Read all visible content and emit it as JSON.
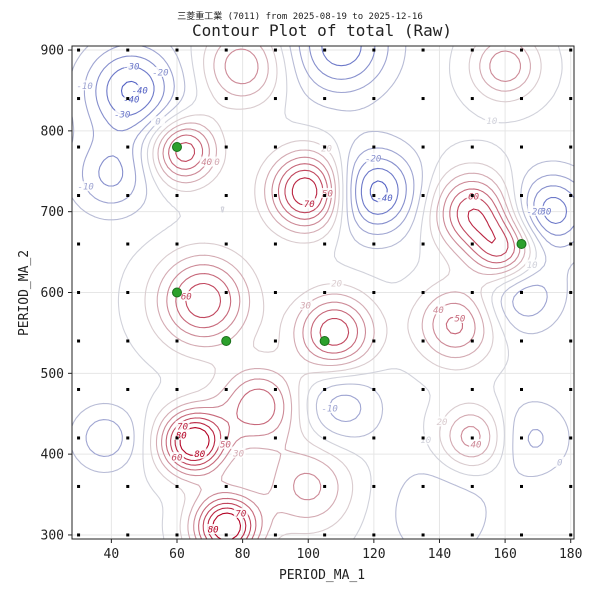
{
  "chart_data": {
    "type": "contour",
    "title": "Contour Plot of total (Raw)",
    "subtitle": "三菱重工業 (7011) from 2025-08-19 to 2025-12-16",
    "xlabel": "PERIOD_MA_1",
    "ylabel": "PERIOD_MA_2",
    "xlim": [
      28,
      181
    ],
    "ylim": [
      295,
      905
    ],
    "xticks": [
      40,
      60,
      80,
      100,
      120,
      140,
      160,
      180
    ],
    "yticks": [
      300,
      400,
      500,
      600,
      700,
      800,
      900
    ],
    "grid": true,
    "colormap": "coolwarm",
    "colors": {
      "low": "#3b4cc0",
      "mid": "#dddddd",
      "high": "#b40426",
      "marker": "#2ca02c",
      "sample": "#000000"
    },
    "value_range": [
      -50,
      80
    ],
    "features": [
      {
        "x": 46,
        "y": 850,
        "value": -50,
        "spread": 14
      },
      {
        "x": 40,
        "y": 745,
        "value": -30,
        "spread": 12
      },
      {
        "x": 120,
        "y": 725,
        "value": -55,
        "spread": 13
      },
      {
        "x": 110,
        "y": 905,
        "value": -45,
        "spread": 15
      },
      {
        "x": 174,
        "y": 700,
        "value": -45,
        "spread": 12
      },
      {
        "x": 165,
        "y": 600,
        "value": -30,
        "spread": 12
      },
      {
        "x": 110,
        "y": 460,
        "value": -25,
        "spread": 12
      },
      {
        "x": 38,
        "y": 420,
        "value": -25,
        "spread": 10
      },
      {
        "x": 168,
        "y": 420,
        "value": -20,
        "spread": 12
      },
      {
        "x": 140,
        "y": 330,
        "value": -15,
        "spread": 18
      },
      {
        "x": 100,
        "y": 725,
        "value": 75,
        "spread": 12
      },
      {
        "x": 65,
        "y": 415,
        "value": 85,
        "spread": 10
      },
      {
        "x": 75,
        "y": 310,
        "value": 85,
        "spread": 10
      },
      {
        "x": 62,
        "y": 775,
        "value": 60,
        "spread": 10
      },
      {
        "x": 68,
        "y": 590,
        "value": 60,
        "spread": 14
      },
      {
        "x": 108,
        "y": 550,
        "value": 60,
        "spread": 12
      },
      {
        "x": 150,
        "y": 700,
        "value": 60,
        "spread": 12
      },
      {
        "x": 160,
        "y": 650,
        "value": 55,
        "spread": 10
      },
      {
        "x": 85,
        "y": 460,
        "value": 50,
        "spread": 12
      },
      {
        "x": 145,
        "y": 560,
        "value": 45,
        "spread": 12
      },
      {
        "x": 150,
        "y": 420,
        "value": 40,
        "spread": 10
      },
      {
        "x": 80,
        "y": 880,
        "value": 40,
        "spread": 12
      },
      {
        "x": 100,
        "y": 360,
        "value": 35,
        "spread": 14
      },
      {
        "x": 160,
        "y": 880,
        "value": 40,
        "spread": 10
      }
    ],
    "contour_levels": [
      -50,
      -40,
      -30,
      -20,
      -10,
      0,
      10,
      20,
      30,
      40,
      50,
      60,
      70,
      80
    ],
    "highlighted_points": [
      {
        "x": 60,
        "y": 780
      },
      {
        "x": 60,
        "y": 600
      },
      {
        "x": 75,
        "y": 540
      },
      {
        "x": 105,
        "y": 540
      },
      {
        "x": 165,
        "y": 660
      }
    ],
    "sample_grid": {
      "x": [
        30,
        45,
        60,
        75,
        90,
        105,
        120,
        135,
        150,
        165,
        180
      ],
      "y": [
        300,
        360,
        420,
        480,
        540,
        600,
        660,
        720,
        780,
        840,
        900
      ]
    }
  }
}
